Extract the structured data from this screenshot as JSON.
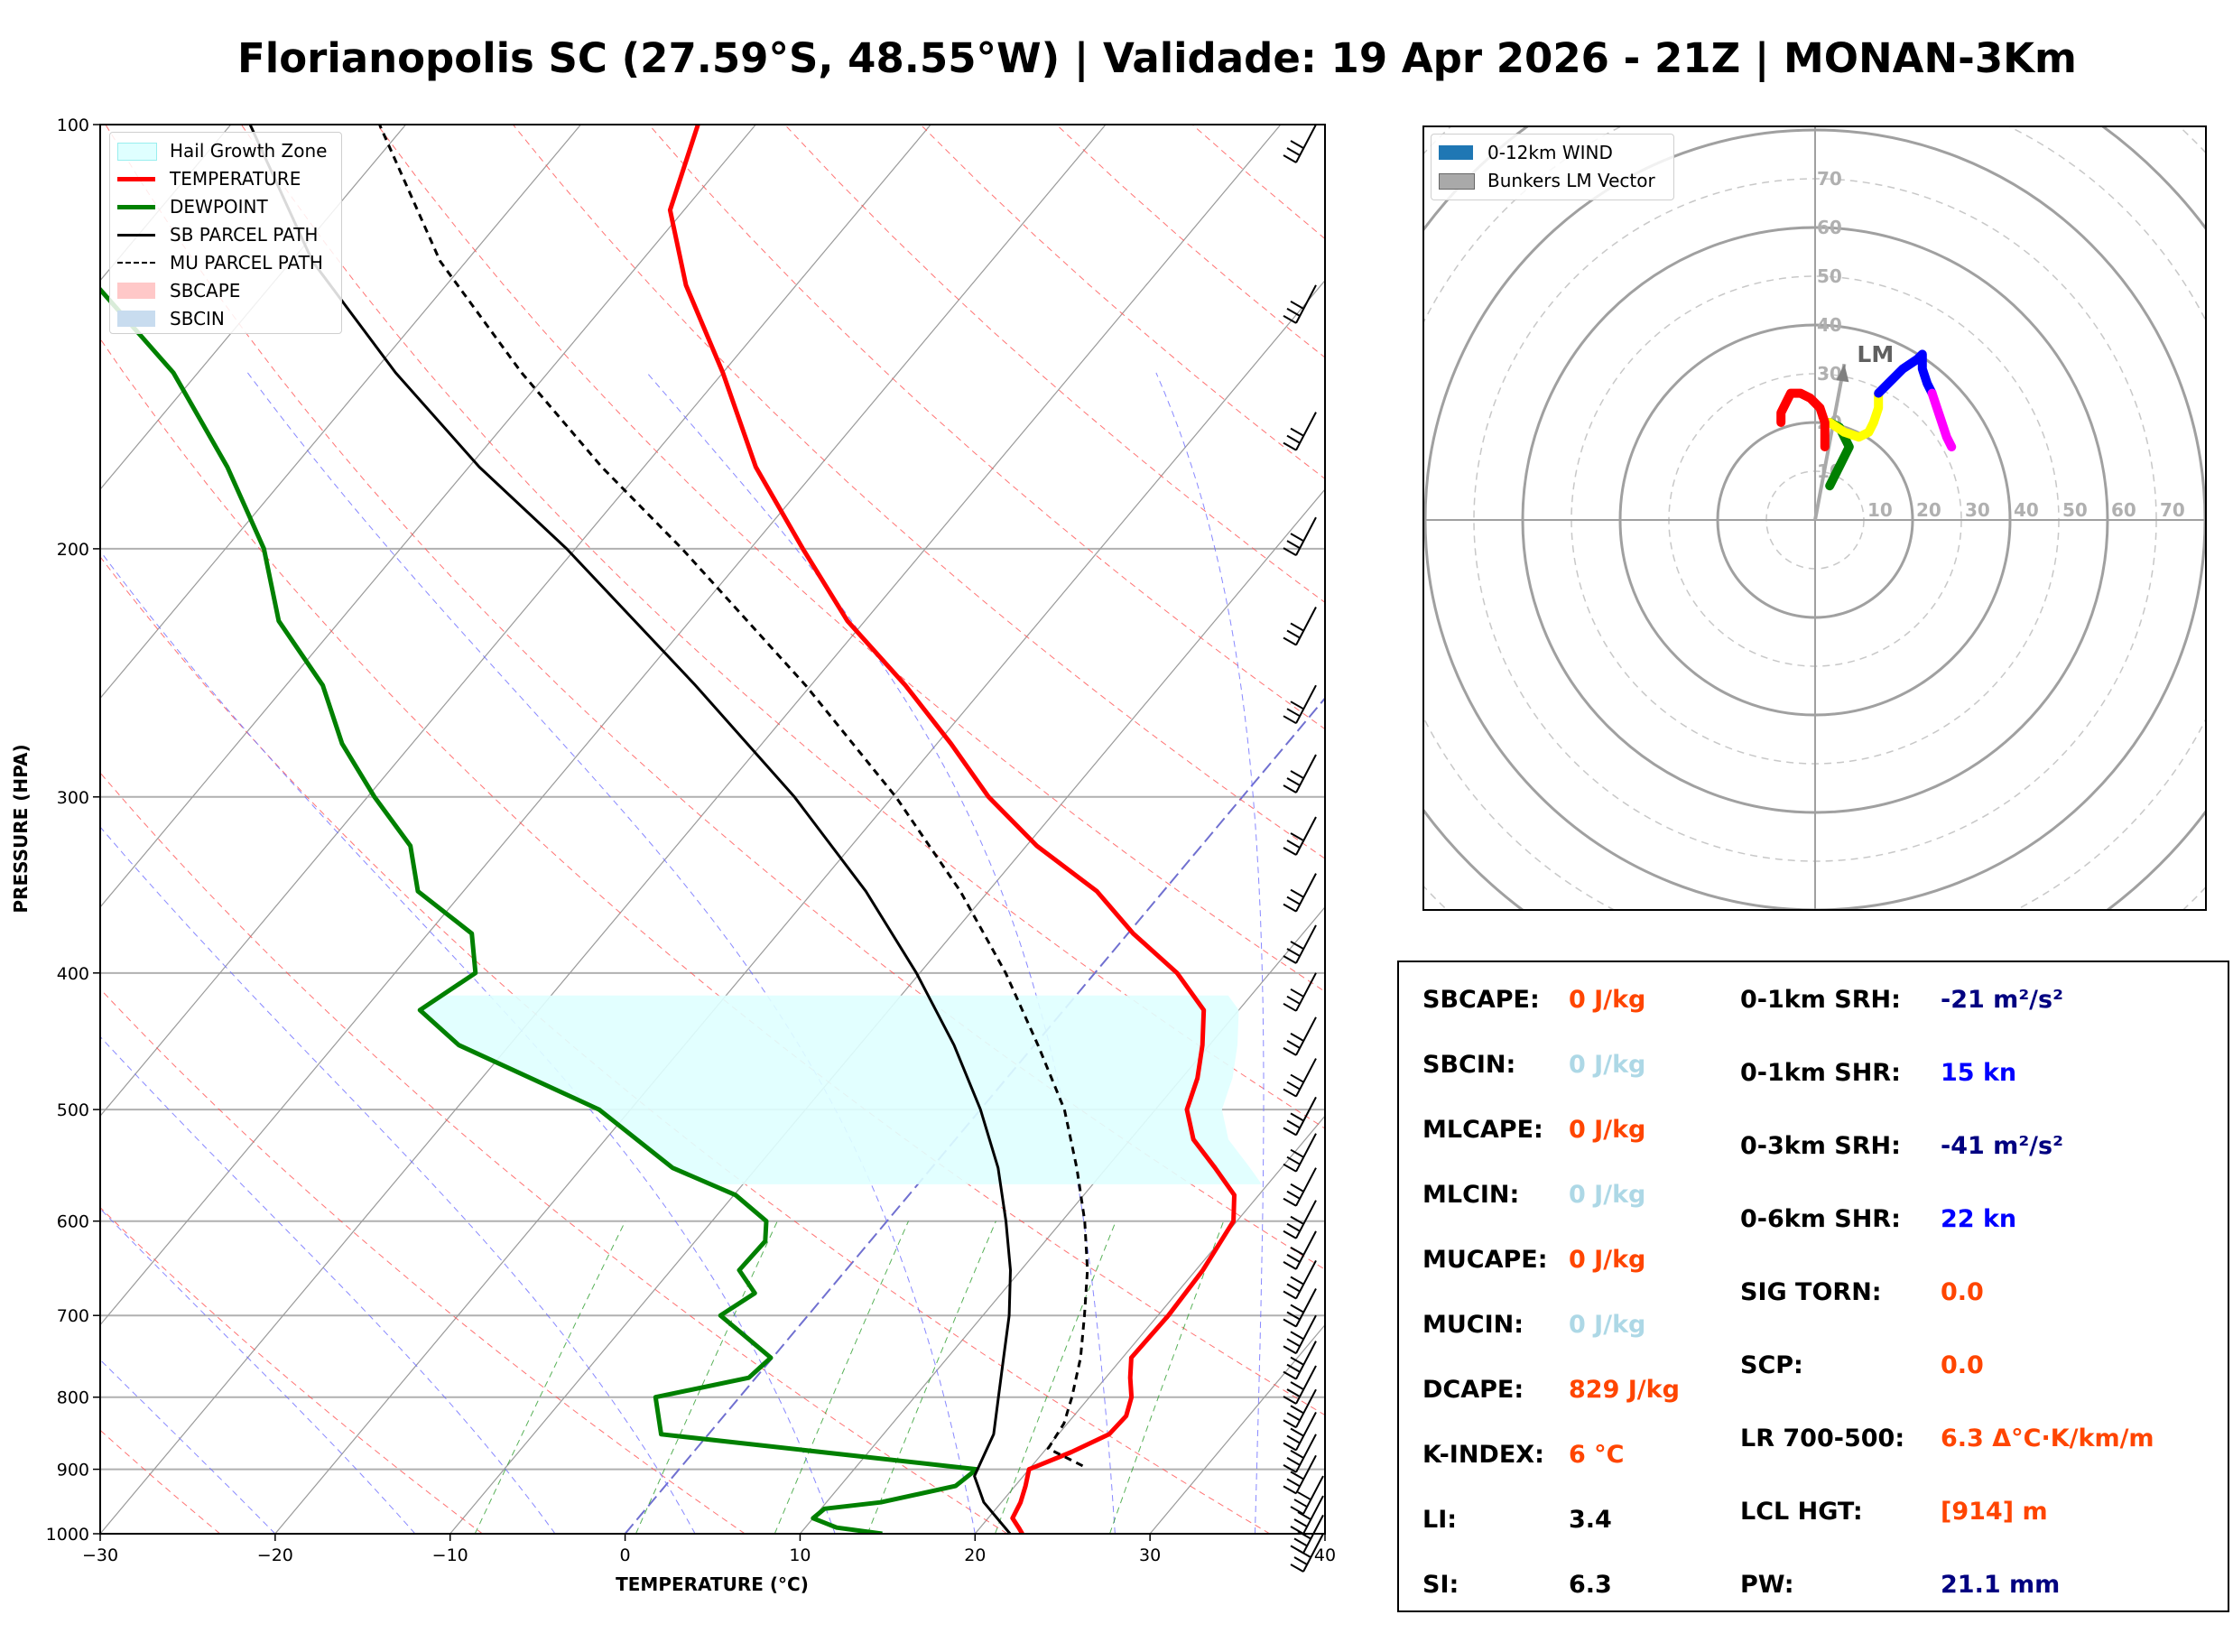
{
  "title": "Florianopolis SC (27.59°S, 48.55°W) | Validade: 19 Apr 2026 - 21Z | MONAN-3Km",
  "skewt": {
    "xlabel": "TEMPERATURE (°C)",
    "ylabel": "PRESSURE (HPA)",
    "x_ticks": [
      "−30",
      "−20",
      "−10",
      "0",
      "10",
      "20",
      "30",
      "40"
    ],
    "p_ticks": [
      "100",
      "200",
      "300",
      "400",
      "500",
      "600",
      "700",
      "800",
      "900",
      "1000"
    ],
    "legend": [
      {
        "label": "Hail Growth Zone",
        "color": "#dfffff",
        "style": "patch-hatch"
      },
      {
        "label": "TEMPERATURE",
        "color": "#ff0000",
        "style": "thick"
      },
      {
        "label": "DEWPOINT",
        "color": "#008000",
        "style": "thick"
      },
      {
        "label": "SB PARCEL PATH",
        "color": "#000000",
        "style": "solid"
      },
      {
        "label": "MU PARCEL PATH",
        "color": "#000000",
        "style": "dashed"
      },
      {
        "label": "SBCAPE",
        "color": "#ffc8c8",
        "style": "patch"
      },
      {
        "label": "SBCIN",
        "color": "#c8dcef",
        "style": "patch"
      }
    ]
  },
  "chart_data": [
    {
      "type": "line",
      "name": "skew-t log-p",
      "x_range_degC": [
        -30,
        40
      ],
      "p_range_hPa": [
        1000,
        100
      ],
      "skew_degC_per_ln_p": 29.3,
      "series": [
        {
          "name": "TEMPERATURE",
          "color": "#ff0000",
          "points": [
            [
              22.7,
              1000
            ],
            [
              22.2,
              990
            ],
            [
              21.4,
              975
            ],
            [
              21.1,
              950
            ],
            [
              20.6,
              925
            ],
            [
              20.0,
              900
            ],
            [
              21.6,
              875
            ],
            [
              22.9,
              850
            ],
            [
              23.0,
              825
            ],
            [
              22.4,
              800
            ],
            [
              21.4,
              775
            ],
            [
              20.5,
              750
            ],
            [
              20.6,
              700
            ],
            [
              20.4,
              650
            ],
            [
              19.8,
              600
            ],
            [
              18.6,
              575
            ],
            [
              16.2,
              550
            ],
            [
              13.6,
              525
            ],
            [
              11.8,
              500
            ],
            [
              10.9,
              475
            ],
            [
              9.6,
              450
            ],
            [
              8.0,
              425
            ],
            [
              4.7,
              400
            ],
            [
              0.3,
              375
            ],
            [
              -3.8,
              350
            ],
            [
              -9.4,
              325
            ],
            [
              -14.5,
              300
            ],
            [
              -19.2,
              275
            ],
            [
              -24.6,
              250
            ],
            [
              -31.0,
              225
            ],
            [
              -37.0,
              200
            ],
            [
              -43.6,
              175
            ],
            [
              -50.0,
              150
            ],
            [
              -56.3,
              130
            ],
            [
              -60.8,
              115
            ],
            [
              -63.3,
              100
            ]
          ]
        },
        {
          "name": "DEWPOINT",
          "color": "#008000",
          "points": [
            [
              14.7,
              1000
            ],
            [
              11.8,
              990
            ],
            [
              10.0,
              975
            ],
            [
              10.2,
              960
            ],
            [
              13.1,
              950
            ],
            [
              16.6,
              925
            ],
            [
              17.0,
              900
            ],
            [
              -2.7,
              850
            ],
            [
              -4.8,
              800
            ],
            [
              -0.4,
              775
            ],
            [
              -0.1,
              750
            ],
            [
              -5.0,
              700
            ],
            [
              -4.1,
              675
            ],
            [
              -6.1,
              650
            ],
            [
              -6.0,
              620
            ],
            [
              -6.9,
              600
            ],
            [
              -9.9,
              575
            ],
            [
              -14.8,
              550
            ],
            [
              -21.8,
              500
            ],
            [
              -32.9,
              450
            ],
            [
              -36.8,
              425
            ],
            [
              -35.4,
              400
            ],
            [
              -37.5,
              375
            ],
            [
              -42.6,
              350
            ],
            [
              -45.2,
              325
            ],
            [
              -49.6,
              300
            ],
            [
              -54.0,
              275
            ],
            [
              -57.9,
              250
            ],
            [
              -63.5,
              225
            ],
            [
              -67.8,
              200
            ],
            [
              -73.8,
              175
            ],
            [
              -81.4,
              150
            ],
            [
              -90.0,
              130
            ],
            [
              -95.0,
              115
            ],
            [
              -98.0,
              100
            ]
          ]
        },
        {
          "name": "SB PARCEL PATH",
          "color": "#000000",
          "dash": "",
          "points": [
            [
              22.0,
              1000
            ],
            [
              19.0,
              950
            ],
            [
              17.2,
              910
            ],
            [
              16.3,
              850
            ],
            [
              14.8,
              800
            ],
            [
              13.2,
              750
            ],
            [
              11.5,
              700
            ],
            [
              9.4,
              650
            ],
            [
              6.8,
              600
            ],
            [
              3.8,
              550
            ],
            [
              0.0,
              500
            ],
            [
              -4.6,
              450
            ],
            [
              -10.2,
              400
            ],
            [
              -17.0,
              350
            ],
            [
              -25.6,
              300
            ],
            [
              -36.6,
              250
            ],
            [
              -50.5,
              200
            ],
            [
              -59.4,
              175
            ],
            [
              -68.7,
              150
            ],
            [
              -78.8,
              125
            ],
            [
              -88.9,
              100
            ]
          ]
        },
        {
          "name": "MU PARCEL PATH",
          "color": "#000000",
          "dash": "8,6",
          "points": [
            [
              22.9,
              895
            ],
            [
              20.1,
              870
            ],
            [
              19.8,
              835
            ],
            [
              19.0,
              800
            ],
            [
              17.6,
              750
            ],
            [
              15.8,
              700
            ],
            [
              13.8,
              650
            ],
            [
              11.3,
              600
            ],
            [
              8.3,
              550
            ],
            [
              4.8,
              500
            ],
            [
              0.2,
              450
            ],
            [
              -5.1,
              400
            ],
            [
              -11.6,
              350
            ],
            [
              -19.8,
              300
            ],
            [
              -30.3,
              250
            ],
            [
              -43.9,
              200
            ],
            [
              -52.4,
              175
            ],
            [
              -61.5,
              150
            ],
            [
              -71.5,
              125
            ],
            [
              -81.5,
              100
            ]
          ]
        }
      ],
      "hail_growth_zone_hPa": [
        415,
        565
      ]
    },
    {
      "type": "line",
      "name": "hodograph",
      "title": "",
      "r_ticks": [
        "10",
        "20",
        "30",
        "40",
        "50",
        "60",
        "70"
      ],
      "legend": [
        {
          "label": "0-12km WIND",
          "color": "#1f77b4"
        },
        {
          "label": "Bunkers LM Vector",
          "color": "#a9a9a9"
        }
      ],
      "bunkers_lm": {
        "label": "LM",
        "u": 6,
        "v": 32
      },
      "series": [
        {
          "name": "0-1km",
          "color": "#008000",
          "points": [
            [
              3,
              7
            ],
            [
              4,
              9
            ],
            [
              5,
              11
            ],
            [
              6,
              13
            ],
            [
              7,
              15
            ],
            [
              5,
              19
            ],
            [
              3,
              20
            ]
          ]
        },
        {
          "name": "1-3km",
          "color": "#ffff00",
          "points": [
            [
              3,
              20
            ],
            [
              6,
              18
            ],
            [
              9,
              17
            ],
            [
              11,
              18
            ],
            [
              12,
              20
            ],
            [
              13,
              23
            ],
            [
              13,
              26
            ]
          ]
        },
        {
          "name": "3-6km",
          "color": "#0000ff",
          "points": [
            [
              13,
              26
            ],
            [
              15,
              28
            ],
            [
              18,
              31
            ],
            [
              21,
              33
            ],
            [
              22,
              34
            ],
            [
              22,
              31
            ],
            [
              23,
              28
            ],
            [
              24,
              26
            ]
          ]
        },
        {
          "name": "6-9km",
          "color": "#ff00ff",
          "points": [
            [
              24,
              26
            ],
            [
              25,
              23
            ],
            [
              26,
              20
            ],
            [
              27,
              17
            ],
            [
              28,
              15
            ]
          ]
        },
        {
          "name": "low",
          "color": "#ff0000",
          "points": [
            [
              2,
              15
            ],
            [
              2,
              18
            ],
            [
              2,
              20
            ],
            [
              1,
              23
            ],
            [
              -1,
              25
            ],
            [
              -3,
              26
            ],
            [
              -5,
              26
            ],
            [
              -6,
              24
            ],
            [
              -7,
              22
            ],
            [
              -7,
              20
            ]
          ]
        }
      ]
    }
  ],
  "parameters": {
    "left": [
      {
        "label": "SBCAPE:",
        "value": "0 J/kg",
        "color": "#ff4500"
      },
      {
        "label": "SBCIN:",
        "value": "0 J/kg",
        "color": "#add8e6"
      },
      {
        "label": "MLCAPE:",
        "value": "0 J/kg",
        "color": "#ff4500"
      },
      {
        "label": "MLCIN:",
        "value": "0 J/kg",
        "color": "#add8e6"
      },
      {
        "label": "MUCAPE:",
        "value": "0 J/kg",
        "color": "#ff4500"
      },
      {
        "label": "MUCIN:",
        "value": "0 J/kg",
        "color": "#add8e6"
      },
      {
        "label": "DCAPE:",
        "value": "829 J/kg",
        "color": "#ff4500"
      },
      {
        "label": "K-INDEX:",
        "value": "6 °C",
        "color": "#ff4500"
      },
      {
        "label": "LI:",
        "value": "3.4",
        "color": "#000000"
      },
      {
        "label": "SI:",
        "value": "6.3",
        "color": "#000000"
      }
    ],
    "right": [
      {
        "label": "0-1km SRH:",
        "value": "-21 m²/s²",
        "color": "#000080"
      },
      {
        "label": "0-1km SHR:",
        "value": "15 kn",
        "color": "#0000ff"
      },
      {
        "label": "0-3km SRH:",
        "value": "-41 m²/s²",
        "color": "#000080"
      },
      {
        "label": "0-6km SHR:",
        "value": "22 kn",
        "color": "#0000ff"
      },
      {
        "label": "SIG TORN:",
        "value": "0.0",
        "color": "#ff4500"
      },
      {
        "label": "SCP:",
        "value": "0.0",
        "color": "#ff4500"
      },
      {
        "label": "LR 700-500:",
        "value": "6.3 Δ°C·K/km/m",
        "color": "#ff4500"
      },
      {
        "label": "LCL HGT:",
        "value": "[914] m",
        "color": "#ff4500"
      },
      {
        "label": "PW:",
        "value": "21.1 mm",
        "color": "#000080"
      }
    ]
  }
}
